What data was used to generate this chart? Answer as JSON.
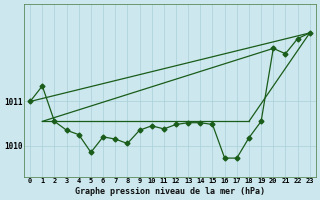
{
  "title": "Graphe pression niveau de la mer (hPa)",
  "background_color": "#cce8ee",
  "grid_color": "#aacfd8",
  "line_color": "#1a5c1a",
  "x_labels": [
    "0",
    "1",
    "2",
    "3",
    "4",
    "5",
    "6",
    "7",
    "8",
    "9",
    "10",
    "11",
    "12",
    "13",
    "14",
    "15",
    "16",
    "17",
    "18",
    "19",
    "20",
    "21",
    "22",
    "23"
  ],
  "ylim": [
    1009.3,
    1013.2
  ],
  "yticks": [
    1010,
    1011
  ],
  "measured_x": [
    0,
    1,
    2,
    3,
    4,
    5,
    6,
    7,
    8,
    9,
    10,
    11,
    12,
    13,
    14,
    15,
    16,
    17,
    18,
    19,
    20,
    21,
    22,
    23
  ],
  "measured_y": [
    1011.0,
    1011.35,
    1010.55,
    1010.35,
    1010.25,
    1009.85,
    1010.2,
    1010.15,
    1010.05,
    1010.35,
    1010.45,
    1010.38,
    1010.48,
    1010.52,
    1010.52,
    1010.48,
    1009.72,
    1009.72,
    1010.18,
    1010.55,
    1012.2,
    1012.08,
    1012.42,
    1012.55
  ],
  "trend_lines": [
    {
      "x": [
        0,
        23
      ],
      "y": [
        1011.0,
        1012.55
      ]
    },
    {
      "x": [
        1,
        20
      ],
      "y": [
        1010.55,
        1012.2
      ]
    },
    {
      "x": [
        1,
        18
      ],
      "y": [
        1010.55,
        1010.55
      ]
    },
    {
      "x": [
        18,
        23
      ],
      "y": [
        1010.55,
        1012.55
      ]
    }
  ],
  "markersize": 2.5,
  "linewidth": 0.9,
  "xlabel_fontsize": 5.0,
  "tick_fontsize": 5.5,
  "title_fontsize": 6.0
}
